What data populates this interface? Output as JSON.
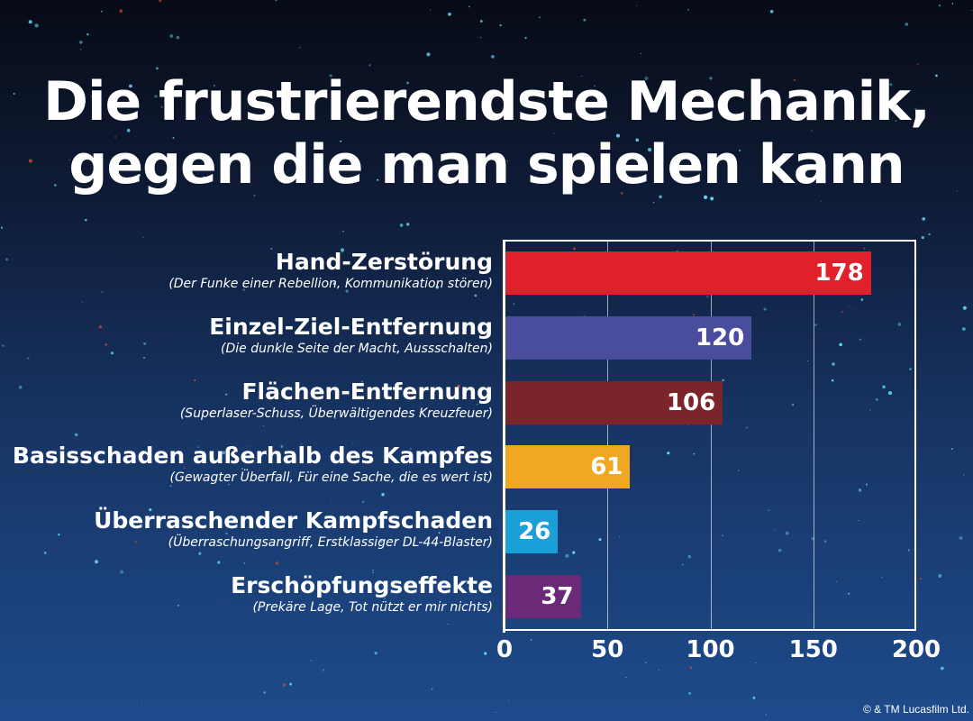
{
  "chart_data": {
    "type": "bar",
    "orientation": "horizontal",
    "title": "Die frustrierendste Mechanik, gegen die man spielen kann",
    "title_lines": [
      "Die frustrierendste Mechanik,",
      "gegen die man spielen kann"
    ],
    "categories": [
      "Hand-Zerstörung",
      "Einzel-Ziel-Entfernung",
      "Flächen-Entfernung",
      "Basisschaden außerhalb des Kampfes",
      "Überraschender Kampfschaden",
      "Erschöpfungseffekte"
    ],
    "subtitles": [
      "(Der Funke einer Rebellion, Kommunikation stören)",
      "(Die dunkle Seite der Macht, Aussschalten)",
      "(Superlaser-Schuss, Überwältigendes Kreuzfeuer)",
      "(Gewagter Überfall, Für eine Sache, die es wert ist)",
      "(Überraschungsangriff, Erstklassiger DL-44-Blaster)",
      "(Prekäre Lage, Tot nützt er mir nichts)"
    ],
    "values": [
      178,
      120,
      106,
      61,
      26,
      37
    ],
    "colors": [
      "#e0212b",
      "#4a4c9e",
      "#7b252b",
      "#f0a823",
      "#1a9fd9",
      "#6b2a78"
    ],
    "xlim": [
      0,
      200
    ],
    "xticks": [
      "0",
      "50",
      "100",
      "150",
      "200"
    ],
    "grid": true,
    "xlabel": "",
    "ylabel": ""
  },
  "copyright": "© & TM Lucasfilm Ltd."
}
